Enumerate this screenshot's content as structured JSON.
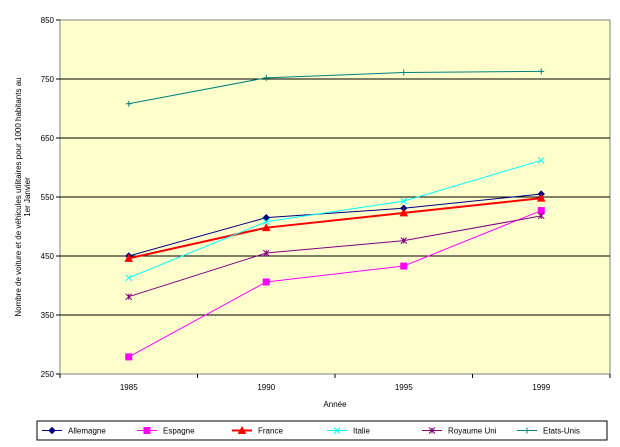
{
  "chart_data": {
    "type": "line",
    "title": "",
    "xlabel": "Année",
    "ylabel": "Nombre de voiture et de véhicules utilitaires pour 1000 habitants au 1er Janvier",
    "categories": [
      "1985",
      "1990",
      "1995",
      "1999"
    ],
    "ylim": [
      250,
      850
    ],
    "yticks": [
      "250",
      "350",
      "450",
      "550",
      "650",
      "750",
      "850"
    ],
    "grid": true,
    "legend_position": "bottom",
    "series": [
      {
        "name": "Allemagne",
        "values": [
          450,
          515,
          531,
          555
        ],
        "color": "#000080",
        "marker": "diamond"
      },
      {
        "name": "Espagne",
        "values": [
          279,
          406,
          433,
          527
        ],
        "color": "#FF00FF",
        "marker": "square"
      },
      {
        "name": "France",
        "values": [
          446,
          498,
          523,
          548
        ],
        "color": "#FF0000",
        "marker": "triangle"
      },
      {
        "name": "Italie",
        "values": [
          413,
          508,
          543,
          612
        ],
        "color": "#00FFFF",
        "marker": "x"
      },
      {
        "name": "Royaume Uni",
        "values": [
          381,
          455,
          476,
          518
        ],
        "color": "#800080",
        "marker": "star"
      },
      {
        "name": "Etats-Unis",
        "values": [
          708,
          752,
          761,
          763
        ],
        "color": "#008080",
        "marker": "plus"
      }
    ]
  }
}
